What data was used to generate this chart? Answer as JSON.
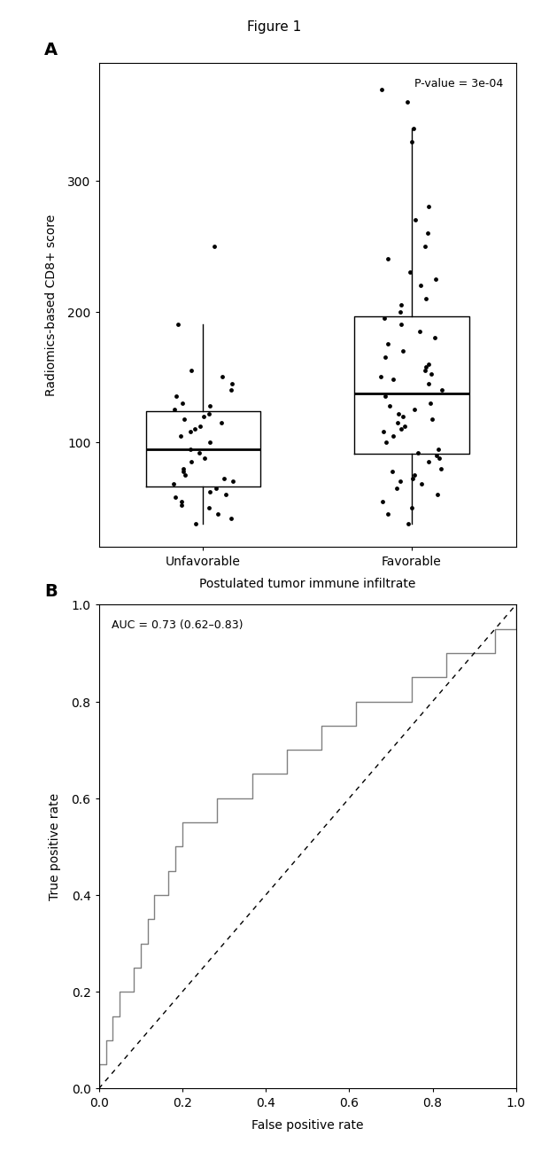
{
  "title": "Figure 1",
  "panel_A_label": "A",
  "panel_B_label": "B",
  "boxplot_ylabel": "Radiomics-based CD8+ score",
  "boxplot_xlabel": "Postulated tumor immune infiltrate",
  "pvalue_text": "P-value = 3e-04",
  "group_labels": [
    "Unfavorable",
    "Favorable"
  ],
  "unfavorable_data": [
    38,
    42,
    45,
    50,
    52,
    55,
    58,
    60,
    62,
    65,
    68,
    70,
    72,
    75,
    78,
    80,
    85,
    88,
    92,
    95,
    100,
    105,
    108,
    110,
    112,
    115,
    118,
    120,
    122,
    125,
    128,
    130,
    135,
    140,
    145,
    150,
    155,
    190,
    250
  ],
  "favorable_data": [
    38,
    45,
    50,
    55,
    60,
    65,
    68,
    70,
    72,
    75,
    78,
    80,
    85,
    88,
    90,
    92,
    95,
    100,
    105,
    108,
    110,
    112,
    115,
    118,
    120,
    122,
    125,
    128,
    130,
    135,
    140,
    145,
    148,
    150,
    152,
    155,
    158,
    160,
    165,
    170,
    175,
    180,
    185,
    190,
    195,
    200,
    205,
    210,
    220,
    225,
    230,
    240,
    250,
    260,
    270,
    280,
    330,
    340,
    360,
    370
  ],
  "ylim_A": [
    20,
    390
  ],
  "yticks_A": [
    100,
    200,
    300
  ],
  "auc_text": "AUC = 0.73 (0.62–0.83)",
  "roc_xlabel": "False positive rate",
  "roc_ylabel": "True positive rate",
  "roc_xlim": [
    0.0,
    1.0
  ],
  "roc_ylim": [
    0.0,
    1.0
  ],
  "roc_xticks": [
    0.0,
    0.2,
    0.4,
    0.6,
    0.8,
    1.0
  ],
  "roc_yticks": [
    0.0,
    0.2,
    0.4,
    0.6,
    0.8,
    1.0
  ],
  "background_color": "#ffffff",
  "jitter_color": "#000000",
  "roc_line_color": "#808080",
  "diag_line_color": "#000000",
  "fig_width": 6.2,
  "fig_height": 13.005,
  "roc_fpr": [
    0.0,
    0.0,
    0.017,
    0.017,
    0.033,
    0.033,
    0.05,
    0.05,
    0.067,
    0.083,
    0.083,
    0.1,
    0.1,
    0.117,
    0.117,
    0.133,
    0.133,
    0.15,
    0.167,
    0.167,
    0.183,
    0.183,
    0.2,
    0.2,
    0.217,
    0.233,
    0.25,
    0.267,
    0.283,
    0.3,
    0.317,
    0.333,
    0.35,
    0.367,
    0.383,
    0.4,
    0.417,
    0.433,
    0.45,
    0.467,
    0.483,
    0.5,
    0.517,
    0.533,
    0.55,
    0.567,
    0.583,
    0.6,
    0.617,
    0.633,
    0.65,
    0.667,
    0.683,
    0.7,
    0.717,
    0.733,
    0.75,
    0.767,
    0.783,
    0.8,
    0.817,
    0.833,
    0.85,
    0.867,
    0.883,
    0.9,
    0.917,
    0.933,
    0.95,
    0.967,
    0.983,
    1.0
  ],
  "roc_tpr": [
    0.0,
    0.05,
    0.05,
    0.1,
    0.1,
    0.15,
    0.15,
    0.2,
    0.2,
    0.2,
    0.25,
    0.25,
    0.3,
    0.3,
    0.35,
    0.35,
    0.4,
    0.4,
    0.4,
    0.45,
    0.45,
    0.5,
    0.5,
    0.55,
    0.55,
    0.55,
    0.55,
    0.55,
    0.6,
    0.6,
    0.6,
    0.6,
    0.6,
    0.65,
    0.65,
    0.65,
    0.65,
    0.65,
    0.7,
    0.7,
    0.7,
    0.7,
    0.7,
    0.75,
    0.75,
    0.75,
    0.75,
    0.75,
    0.8,
    0.8,
    0.8,
    0.8,
    0.8,
    0.8,
    0.8,
    0.8,
    0.85,
    0.85,
    0.85,
    0.85,
    0.85,
    0.9,
    0.9,
    0.9,
    0.9,
    0.9,
    0.9,
    0.9,
    0.95,
    0.95,
    0.95,
    1.0
  ]
}
